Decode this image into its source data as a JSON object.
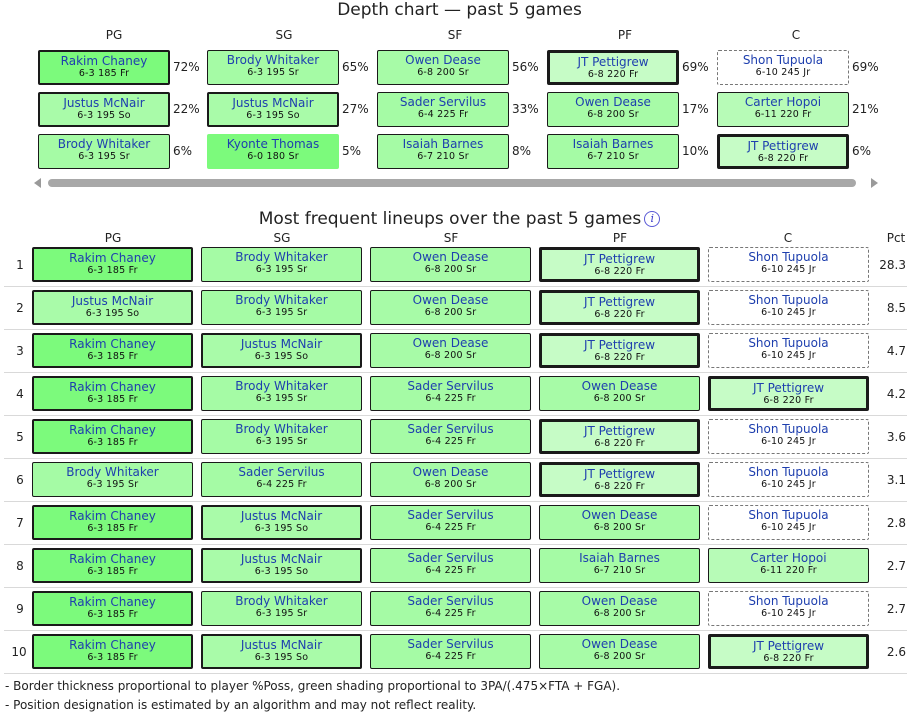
{
  "depth_chart": {
    "title": "Depth chart — past 5 games",
    "positions": [
      "PG",
      "SG",
      "SF",
      "PF",
      "C"
    ],
    "columns": [
      {
        "players": [
          {
            "name": "Rakim Chaney",
            "bio": "6-3  185  Fr",
            "pct": "72%"
          },
          {
            "name": "Justus McNair",
            "bio": "6-3  195  So",
            "pct": "22%"
          },
          {
            "name": "Brody Whitaker",
            "bio": "6-3  195  Sr",
            "pct": "6%"
          }
        ]
      },
      {
        "players": [
          {
            "name": "Brody Whitaker",
            "bio": "6-3  195  Sr",
            "pct": "65%"
          },
          {
            "name": "Justus McNair",
            "bio": "6-3  195  So",
            "pct": "27%"
          },
          {
            "name": "Kyonte Thomas",
            "bio": "6-0  180  Sr",
            "pct": "5%"
          }
        ]
      },
      {
        "players": [
          {
            "name": "Owen Dease",
            "bio": "6-8  200  Sr",
            "pct": "56%"
          },
          {
            "name": "Sader Servilus",
            "bio": "6-4  225  Fr",
            "pct": "33%"
          },
          {
            "name": "Isaiah Barnes",
            "bio": "6-7  210  Sr",
            "pct": "8%"
          }
        ]
      },
      {
        "players": [
          {
            "name": "JT Pettigrew",
            "bio": "6-8  220  Fr",
            "pct": "69%"
          },
          {
            "name": "Owen Dease",
            "bio": "6-8  200  Sr",
            "pct": "17%"
          },
          {
            "name": "Isaiah Barnes",
            "bio": "6-7  210  Sr",
            "pct": "10%"
          }
        ]
      },
      {
        "players": [
          {
            "name": "Shon Tupuola",
            "bio": "6-10  245  Jr",
            "pct": "69%"
          },
          {
            "name": "Carter Hopoi",
            "bio": "6-11  220  Fr",
            "pct": "21%"
          },
          {
            "name": "JT Pettigrew",
            "bio": "6-8  220  Fr",
            "pct": "6%"
          }
        ]
      }
    ]
  },
  "lineups": {
    "title": "Most frequent lineups over the past 5 games",
    "info_icon": "info-icon",
    "positions": [
      "PG",
      "SG",
      "SF",
      "PF",
      "C"
    ],
    "pct_header": "Pct",
    "rows": [
      {
        "rank": "1",
        "pct": "28.3",
        "players": [
          {
            "name": "Rakim Chaney",
            "bio": "6-3  185  Fr"
          },
          {
            "name": "Brody Whitaker",
            "bio": "6-3  195  Sr"
          },
          {
            "name": "Owen Dease",
            "bio": "6-8  200  Sr"
          },
          {
            "name": "JT Pettigrew",
            "bio": "6-8  220  Fr"
          },
          {
            "name": "Shon Tupuola",
            "bio": "6-10  245  Jr"
          }
        ]
      },
      {
        "rank": "2",
        "pct": "8.5",
        "players": [
          {
            "name": "Justus McNair",
            "bio": "6-3  195  So"
          },
          {
            "name": "Brody Whitaker",
            "bio": "6-3  195  Sr"
          },
          {
            "name": "Owen Dease",
            "bio": "6-8  200  Sr"
          },
          {
            "name": "JT Pettigrew",
            "bio": "6-8  220  Fr"
          },
          {
            "name": "Shon Tupuola",
            "bio": "6-10  245  Jr"
          }
        ]
      },
      {
        "rank": "3",
        "pct": "4.7",
        "players": [
          {
            "name": "Rakim Chaney",
            "bio": "6-3  185  Fr"
          },
          {
            "name": "Justus McNair",
            "bio": "6-3  195  So"
          },
          {
            "name": "Owen Dease",
            "bio": "6-8  200  Sr"
          },
          {
            "name": "JT Pettigrew",
            "bio": "6-8  220  Fr"
          },
          {
            "name": "Shon Tupuola",
            "bio": "6-10  245  Jr"
          }
        ]
      },
      {
        "rank": "4",
        "pct": "4.2",
        "players": [
          {
            "name": "Rakim Chaney",
            "bio": "6-3  185  Fr"
          },
          {
            "name": "Brody Whitaker",
            "bio": "6-3  195  Sr"
          },
          {
            "name": "Sader Servilus",
            "bio": "6-4  225  Fr"
          },
          {
            "name": "Owen Dease",
            "bio": "6-8  200  Sr"
          },
          {
            "name": "JT Pettigrew",
            "bio": "6-8  220  Fr"
          }
        ]
      },
      {
        "rank": "5",
        "pct": "3.6",
        "players": [
          {
            "name": "Rakim Chaney",
            "bio": "6-3  185  Fr"
          },
          {
            "name": "Brody Whitaker",
            "bio": "6-3  195  Sr"
          },
          {
            "name": "Sader Servilus",
            "bio": "6-4  225  Fr"
          },
          {
            "name": "JT Pettigrew",
            "bio": "6-8  220  Fr"
          },
          {
            "name": "Shon Tupuola",
            "bio": "6-10  245  Jr"
          }
        ]
      },
      {
        "rank": "6",
        "pct": "3.1",
        "players": [
          {
            "name": "Brody Whitaker",
            "bio": "6-3  195  Sr"
          },
          {
            "name": "Sader Servilus",
            "bio": "6-4  225  Fr"
          },
          {
            "name": "Owen Dease",
            "bio": "6-8  200  Sr"
          },
          {
            "name": "JT Pettigrew",
            "bio": "6-8  220  Fr"
          },
          {
            "name": "Shon Tupuola",
            "bio": "6-10  245  Jr"
          }
        ]
      },
      {
        "rank": "7",
        "pct": "2.8",
        "players": [
          {
            "name": "Rakim Chaney",
            "bio": "6-3  185  Fr"
          },
          {
            "name": "Justus McNair",
            "bio": "6-3  195  So"
          },
          {
            "name": "Sader Servilus",
            "bio": "6-4  225  Fr"
          },
          {
            "name": "Owen Dease",
            "bio": "6-8  200  Sr"
          },
          {
            "name": "Shon Tupuola",
            "bio": "6-10  245  Jr"
          }
        ]
      },
      {
        "rank": "8",
        "pct": "2.7",
        "players": [
          {
            "name": "Rakim Chaney",
            "bio": "6-3  185  Fr"
          },
          {
            "name": "Justus McNair",
            "bio": "6-3  195  So"
          },
          {
            "name": "Sader Servilus",
            "bio": "6-4  225  Fr"
          },
          {
            "name": "Isaiah Barnes",
            "bio": "6-7  210  Sr"
          },
          {
            "name": "Carter Hopoi",
            "bio": "6-11  220  Fr"
          }
        ]
      },
      {
        "rank": "9",
        "pct": "2.7",
        "players": [
          {
            "name": "Rakim Chaney",
            "bio": "6-3  185  Fr"
          },
          {
            "name": "Brody Whitaker",
            "bio": "6-3  195  Sr"
          },
          {
            "name": "Sader Servilus",
            "bio": "6-4  225  Fr"
          },
          {
            "name": "Owen Dease",
            "bio": "6-8  200  Sr"
          },
          {
            "name": "Shon Tupuola",
            "bio": "6-10  245  Jr"
          }
        ]
      },
      {
        "rank": "10",
        "pct": "2.6",
        "players": [
          {
            "name": "Rakim Chaney",
            "bio": "6-3  185  Fr"
          },
          {
            "name": "Justus McNair",
            "bio": "6-3  195  So"
          },
          {
            "name": "Sader Servilus",
            "bio": "6-4  225  Fr"
          },
          {
            "name": "Owen Dease",
            "bio": "6-8  200  Sr"
          },
          {
            "name": "JT Pettigrew",
            "bio": "6-8  220  Fr"
          }
        ]
      }
    ]
  },
  "notes": [
    "- Border thickness proportional to player %Poss, green shading proportional to 3PA/(.475×FTA + FGA).",
    "- Position designation is estimated by an algorithm and may not reflect reality."
  ]
}
